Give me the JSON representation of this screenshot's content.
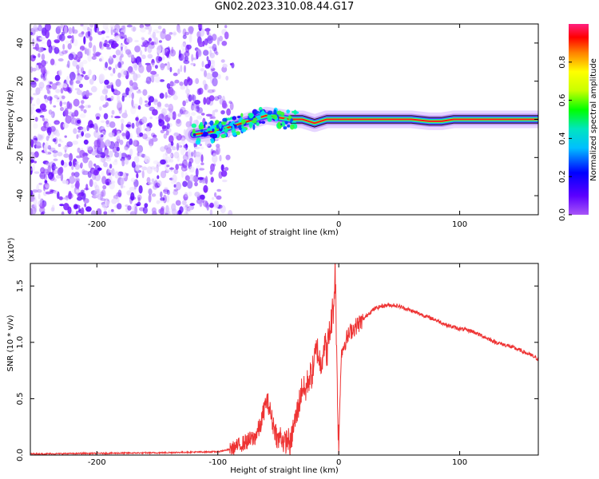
{
  "title": "GN02.2023.310.08.44.G17",
  "colors": {
    "snr_line": "#ee3333",
    "axis": "#000000"
  },
  "chart_data": [
    {
      "type": "heatmap",
      "xlabel": "Height of straight line (km)",
      "ylabel": "Frequency (Hz)",
      "xlim": [
        -255,
        165
      ],
      "ylim": [
        -50,
        50
      ],
      "xticks": [
        -200,
        -100,
        0,
        100
      ],
      "yticks": [
        -40,
        -20,
        0,
        20,
        40
      ],
      "colorbar": {
        "label": "Normalized spectral amplitude",
        "range": [
          0,
          1
        ],
        "ticks": [
          "0.0",
          "0.2",
          "0.4",
          "0.6",
          "0.8"
        ],
        "scale": "rainbow (purple to red to magenta)"
      },
      "grid": false,
      "ridge": {
        "description": "Dominant frequency ridge",
        "x": [
          -120,
          -110,
          -100,
          -90,
          -80,
          -70,
          -60,
          -50,
          -40,
          -30,
          -20,
          -10,
          0,
          20,
          40,
          60,
          75,
          85,
          95,
          120,
          165
        ],
        "y": [
          -8,
          -7,
          -6,
          -4,
          -2,
          0,
          2,
          1,
          0,
          0,
          -2,
          0,
          0,
          0,
          0,
          0,
          -1,
          -1,
          0,
          0,
          0
        ]
      }
    },
    {
      "type": "line",
      "xlabel": "Height of straight line (km)",
      "ylabel": "SNR (10 * v/v)",
      "y_multiplier": "(x10⁴)",
      "xlim": [
        -255,
        165
      ],
      "ylim": [
        0,
        1.7
      ],
      "xticks": [
        -200,
        -100,
        0,
        100
      ],
      "yticks": [
        "0.0",
        "0.5",
        "1.0",
        "1.5"
      ],
      "grid": false,
      "series": [
        {
          "x": [
            -255,
            -200,
            -150,
            -100,
            -90,
            -80,
            -70,
            -65,
            -60,
            -58,
            -55,
            -52,
            -50,
            -48,
            -45,
            -42,
            -40,
            -38,
            -35,
            -32,
            -30,
            -28,
            -25,
            -22,
            -20,
            -18,
            -15,
            -12,
            -10,
            -8,
            -6,
            -4,
            -3,
            -2,
            -1,
            0,
            2,
            5,
            10,
            15,
            20,
            25,
            30,
            35,
            40,
            45,
            50,
            55,
            60,
            70,
            80,
            90,
            100,
            110,
            120,
            130,
            140,
            150,
            160,
            165
          ],
          "y": [
            0.01,
            0.015,
            0.02,
            0.03,
            0.05,
            0.1,
            0.15,
            0.25,
            0.48,
            0.45,
            0.3,
            0.2,
            0.12,
            0.18,
            0.1,
            0.15,
            0.08,
            0.22,
            0.35,
            0.5,
            0.62,
            0.55,
            0.68,
            0.72,
            0.85,
            0.95,
            0.8,
            1.0,
            0.9,
            1.05,
            1.2,
            1.35,
            1.7,
            1.1,
            0.5,
            0.05,
            0.9,
            1.0,
            1.1,
            1.15,
            1.2,
            1.26,
            1.3,
            1.32,
            1.33,
            1.33,
            1.32,
            1.3,
            1.28,
            1.24,
            1.2,
            1.15,
            1.12,
            1.1,
            1.05,
            1.0,
            0.97,
            0.93,
            0.88,
            0.85
          ]
        }
      ]
    }
  ]
}
